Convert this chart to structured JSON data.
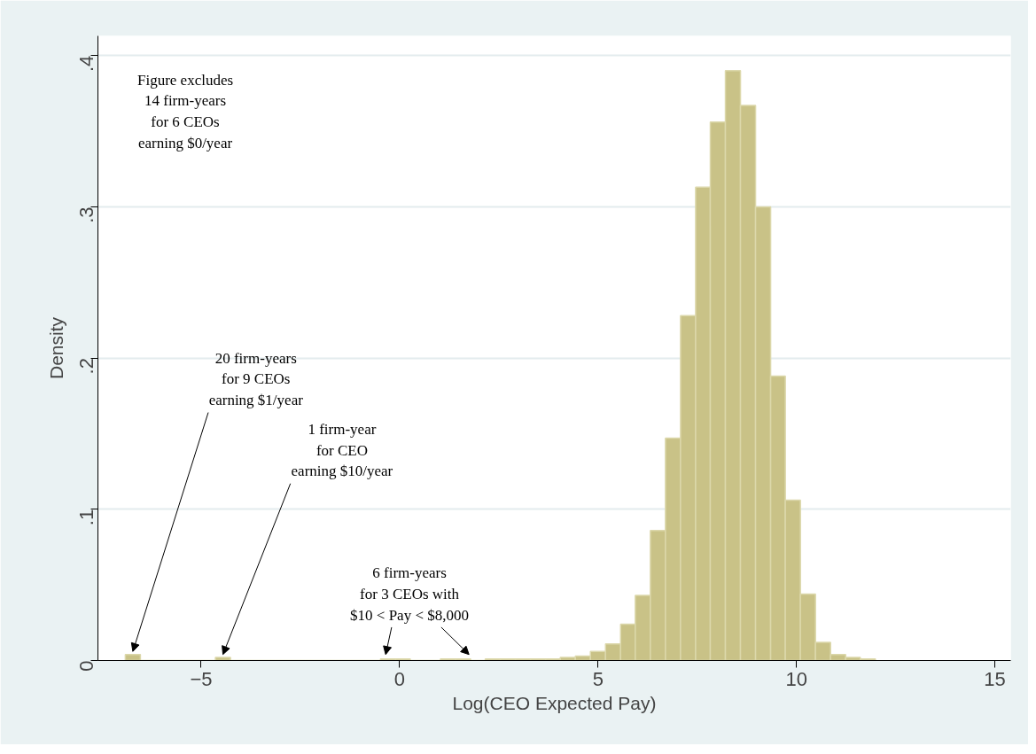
{
  "chart_data": {
    "type": "histogram",
    "xlabel": "Log(CEO Expected Pay)",
    "ylabel": "Density",
    "bins": [
      -6.91,
      -6.53,
      -6.15,
      -5.77,
      -5.4,
      -5.02,
      -4.64,
      -4.26,
      -3.88,
      -3.51,
      -3.13,
      -2.75,
      -2.37,
      -1.99,
      -1.62,
      -1.24,
      -0.86,
      -0.48,
      -0.1,
      0.27,
      0.65,
      1.03,
      1.41,
      1.79,
      2.16,
      2.54,
      2.92,
      3.3,
      3.68,
      4.05,
      4.43,
      4.81,
      5.19,
      5.57,
      5.94,
      6.32,
      6.7,
      7.08,
      7.46,
      7.83,
      8.21,
      8.59,
      8.97,
      9.35,
      9.72,
      10.1,
      10.48,
      10.86,
      11.24,
      11.61,
      11.99
    ],
    "values": [
      0.004,
      0,
      0,
      0,
      0,
      0,
      0.002,
      0,
      0,
      0,
      0,
      0,
      0,
      0,
      0,
      0,
      0,
      0.001,
      0.001,
      0,
      0,
      0.001,
      0.001,
      0,
      0.001,
      0.001,
      0.001,
      0.001,
      0.001,
      0.002,
      0.003,
      0.006,
      0.011,
      0.024,
      0.043,
      0.086,
      0.147,
      0.228,
      0.313,
      0.356,
      0.39,
      0.367,
      0.3,
      0.188,
      0.106,
      0.044,
      0.012,
      0.004,
      0.002,
      0.001
    ],
    "color": "#c9c287",
    "xlim": [
      -7.6,
      15.4
    ],
    "ylim": [
      0,
      0.413
    ],
    "xticks": [
      -5,
      0,
      5,
      10,
      15
    ],
    "yticks": [
      0,
      {
        "value": 0.1,
        "label": ".1"
      },
      {
        "value": 0.2,
        "label": ".2"
      },
      {
        "value": 0.3,
        "label": ".3"
      },
      {
        "value": 0.4,
        "label": ".4"
      }
    ],
    "grid": "y",
    "annotations": [
      "Figure excludes\n14 firm-years\nfor 6 CEOs\nearning $0/year",
      {
        "text": "20 firm-years\nfor 9 CEOs\nearning $1/year",
        "x": -6.72,
        "y": 0.004
      },
      {
        "text": "1 firm-year\nfor CEO\nearning $10/year",
        "x": -4.45,
        "y": 0.002
      },
      {
        "text": "6 firm-years\nfor 3 CEOs with\n$10 < Pay < $8,000",
        "x": -0.35,
        "y": 0.002
      }
    ]
  }
}
